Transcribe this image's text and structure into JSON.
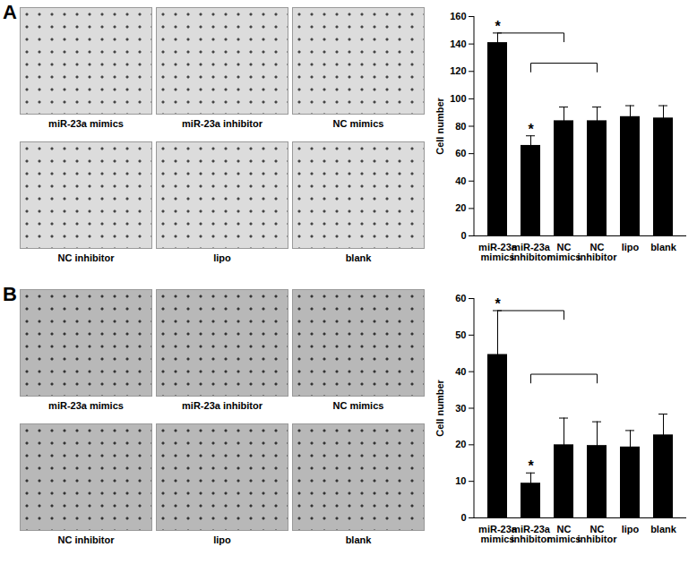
{
  "figure": {
    "panels": [
      {
        "label": "A",
        "image_labels": [
          "miR-23a mimics",
          "miR-23a inhibitor",
          "NC mimics",
          "NC inhibitor",
          "lipo",
          "blank"
        ]
      },
      {
        "label": "B",
        "image_labels": [
          "miR-23a mimics",
          "miR-23a inhibitor",
          "NC mimics",
          "NC inhibitor",
          "lipo",
          "blank"
        ]
      }
    ]
  },
  "chart_data": [
    {
      "type": "bar",
      "y_label": "Cell number",
      "categories": [
        "miR-23a mimics",
        "miR-23a inhibitor",
        "NC mimics",
        "NC inhibitor",
        "lipo",
        "blank"
      ],
      "values": [
        141,
        66,
        84,
        84,
        87,
        86
      ],
      "errors": [
        7,
        7,
        10,
        10,
        8,
        9
      ],
      "annotations": [
        "*",
        "*",
        null,
        null,
        null,
        null
      ],
      "comparisons": [
        [
          "miR-23a mimics",
          "NC mimics"
        ],
        [
          "miR-23a inhibitor",
          "NC inhibitor"
        ]
      ],
      "color": "#000000",
      "ylim": [
        0,
        160
      ],
      "yticks": [
        0,
        20,
        40,
        60,
        80,
        100,
        120,
        140,
        160
      ],
      "grid": false
    },
    {
      "type": "bar",
      "y_label": "Cell number",
      "categories": [
        "miR-23a mimics",
        "miR-23a inhibitor",
        "NC mimics",
        "NC inhibitor",
        "lipo",
        "blank"
      ],
      "values": [
        44.7,
        9.5,
        20,
        19.8,
        19.4,
        22.7
      ],
      "errors": [
        12,
        2.8,
        7.3,
        6.5,
        4.5,
        5.7
      ],
      "annotations": [
        "*",
        "*",
        null,
        null,
        null,
        null
      ],
      "comparisons": [
        [
          "miR-23a mimics",
          "NC mimics"
        ],
        [
          "miR-23a inhibitor",
          "NC inhibitor"
        ]
      ],
      "color": "#000000",
      "ylim": [
        0,
        60
      ],
      "yticks": [
        0,
        10,
        20,
        30,
        40,
        50,
        60
      ],
      "grid": false
    }
  ]
}
